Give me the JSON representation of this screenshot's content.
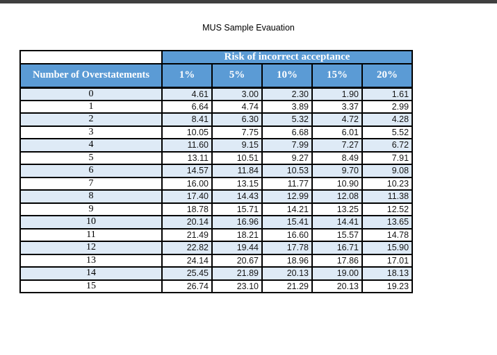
{
  "page": {
    "title": "MUS Sample Evauation"
  },
  "colors": {
    "header_blue": "#5b9bd5",
    "row_alt_blue": "#deeaf6",
    "border_black": "#000000",
    "top_bar": "#3f3f3f"
  },
  "table": {
    "group_header": "Risk of incorrect acceptance",
    "row_header_label": "Number of Overstatements",
    "column_headers": [
      "1%",
      "5%",
      "10%",
      "15%",
      "20%"
    ],
    "rows": [
      {
        "label": "0",
        "values": [
          "4.61",
          "3.00",
          "2.30",
          "1.90",
          "1.61"
        ]
      },
      {
        "label": "1",
        "values": [
          "6.64",
          "4.74",
          "3.89",
          "3.37",
          "2.99"
        ]
      },
      {
        "label": "2",
        "values": [
          "8.41",
          "6.30",
          "5.32",
          "4.72",
          "4.28"
        ]
      },
      {
        "label": "3",
        "values": [
          "10.05",
          "7.75",
          "6.68",
          "6.01",
          "5.52"
        ]
      },
      {
        "label": "4",
        "values": [
          "11.60",
          "9.15",
          "7.99",
          "7.27",
          "6.72"
        ]
      },
      {
        "label": "5",
        "values": [
          "13.11",
          "10.51",
          "9.27",
          "8.49",
          "7.91"
        ]
      },
      {
        "label": "6",
        "values": [
          "14.57",
          "11.84",
          "10.53",
          "9.70",
          "9.08"
        ]
      },
      {
        "label": "7",
        "values": [
          "16.00",
          "13.15",
          "11.77",
          "10.90",
          "10.23"
        ]
      },
      {
        "label": "8",
        "values": [
          "17.40",
          "14.43",
          "12.99",
          "12.08",
          "11.38"
        ]
      },
      {
        "label": "9",
        "values": [
          "18.78",
          "15.71",
          "14.21",
          "13.25",
          "12.52"
        ]
      },
      {
        "label": "10",
        "values": [
          "20.14",
          "16.96",
          "15.41",
          "14.41",
          "13.65"
        ]
      },
      {
        "label": "11",
        "values": [
          "21.49",
          "18.21",
          "16.60",
          "15.57",
          "14.78"
        ]
      },
      {
        "label": "12",
        "values": [
          "22.82",
          "19.44",
          "17.78",
          "16.71",
          "15.90"
        ]
      },
      {
        "label": "13",
        "values": [
          "24.14",
          "20.67",
          "18.96",
          "17.86",
          "17.01"
        ]
      },
      {
        "label": "14",
        "values": [
          "25.45",
          "21.89",
          "20.13",
          "19.00",
          "18.13"
        ]
      },
      {
        "label": "15",
        "values": [
          "26.74",
          "23.10",
          "21.29",
          "20.13",
          "19.23"
        ]
      }
    ]
  }
}
